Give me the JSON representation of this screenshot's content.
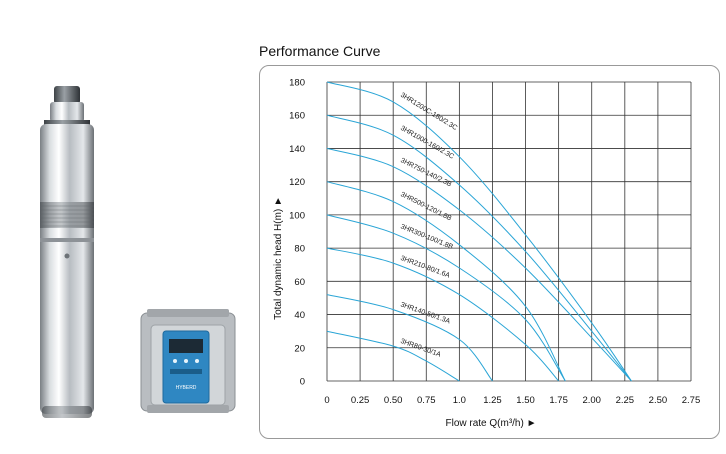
{
  "figure": {
    "heading": "Performance Curve",
    "product_images": [
      "submersible-pump",
      "pump-controller"
    ],
    "controller_brand_text": "HYBERD"
  },
  "chart_data": {
    "type": "line",
    "title": "Performance Curve",
    "xlabel": "Flow rate Q(m³/h) ►",
    "ylabel": "Total dynamic head H(m) ►",
    "xlim": [
      0,
      2.75
    ],
    "ylim": [
      0,
      180
    ],
    "x_ticks": [
      "0",
      "0.25",
      "0.50",
      "0.75",
      "1.0",
      "1.25",
      "1.50",
      "1.75",
      "2.00",
      "2.25",
      "2.50",
      "2.75"
    ],
    "y_ticks": [
      "0",
      "20",
      "40",
      "60",
      "80",
      "100",
      "120",
      "140",
      "160",
      "180"
    ],
    "grid": true,
    "line_color": "#2aa5d6",
    "series": [
      {
        "name": "3HR1200C-180/2.3C",
        "x": [
          0,
          0.5,
          1.0,
          1.5,
          2.0,
          2.3
        ],
        "y": [
          180,
          168,
          135,
          88,
          35,
          0
        ]
      },
      {
        "name": "3HR1000-160/2.3C",
        "x": [
          0,
          0.5,
          1.0,
          1.5,
          2.0,
          2.3
        ],
        "y": [
          160,
          148,
          118,
          78,
          30,
          0
        ]
      },
      {
        "name": "3HR750-140/2.3B",
        "x": [
          0,
          0.5,
          1.0,
          1.5,
          2.0,
          2.3
        ],
        "y": [
          140,
          129,
          103,
          68,
          26,
          0
        ]
      },
      {
        "name": "3HR500-120/1.8B",
        "x": [
          0,
          0.5,
          1.0,
          1.5,
          1.8
        ],
        "y": [
          120,
          108,
          82,
          45,
          0
        ]
      },
      {
        "name": "3HR300-100/1.8B",
        "x": [
          0,
          0.5,
          1.0,
          1.5,
          1.8
        ],
        "y": [
          100,
          89,
          68,
          37,
          0
        ]
      },
      {
        "name": "3HR210-80/1.6A",
        "x": [
          0,
          0.5,
          1.0,
          1.5,
          1.75
        ],
        "y": [
          80,
          71,
          52,
          22,
          0
        ]
      },
      {
        "name": "3HR140-50/1.3A",
        "x": [
          0,
          0.5,
          1.0,
          1.25
        ],
        "y": [
          52,
          43,
          25,
          0
        ]
      },
      {
        "name": "3HR80-30/1A",
        "x": [
          0,
          0.5,
          0.75,
          1.0
        ],
        "y": [
          30,
          21,
          12,
          0
        ]
      }
    ]
  }
}
